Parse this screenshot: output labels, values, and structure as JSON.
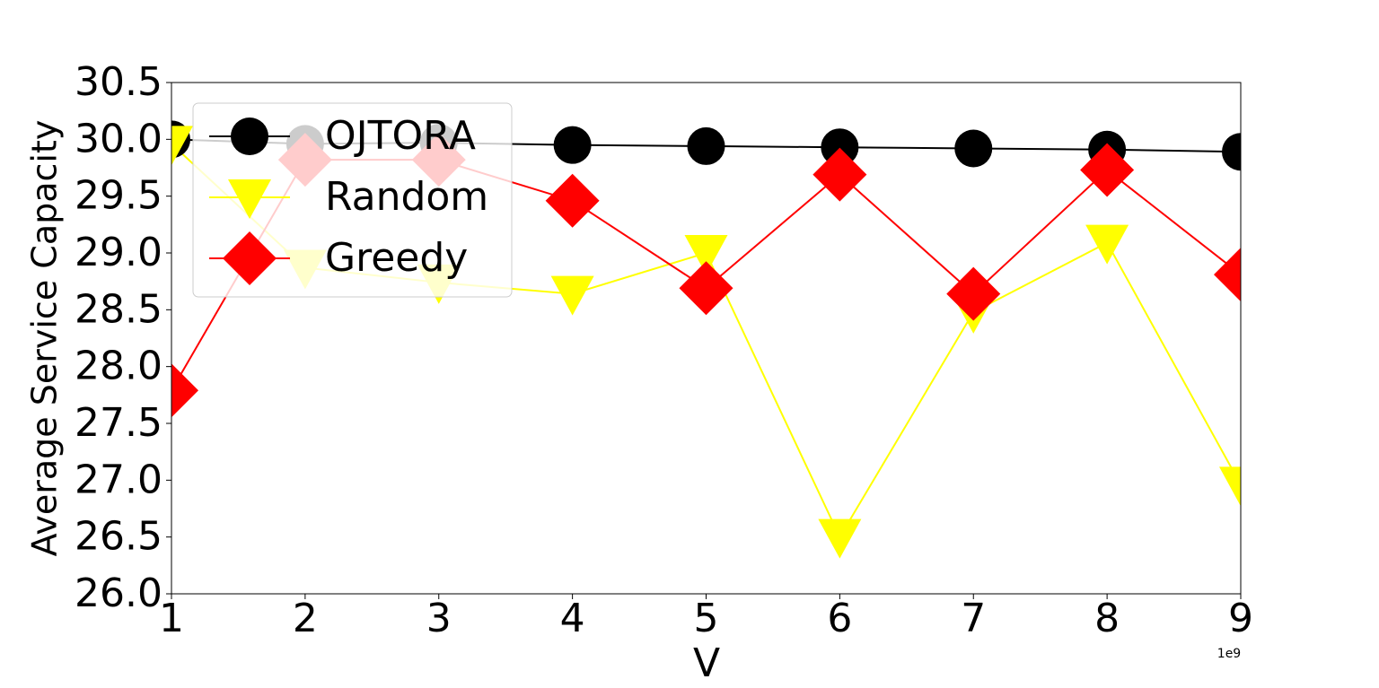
{
  "chart_data": {
    "type": "line",
    "x_label": "V",
    "y_label": "Average Service Capacity",
    "x_offset_label": "1e9",
    "x": [
      1,
      2,
      3,
      4,
      5,
      6,
      7,
      8,
      9
    ],
    "xlim": [
      1,
      9
    ],
    "xticks": [
      1,
      2,
      3,
      4,
      5,
      6,
      7,
      8,
      9
    ],
    "ylim": [
      26.0,
      30.5
    ],
    "yticks": [
      {
        "value": 26.0,
        "label": "26.0"
      },
      26.5,
      {
        "value": 27.0,
        "label": "27.0"
      },
      27.5,
      {
        "value": 28.0,
        "label": "28.0"
      },
      28.5,
      {
        "value": 29.0,
        "label": "29.0"
      },
      29.5,
      {
        "value": 30.0,
        "label": "30.0"
      },
      30.5
    ],
    "legend": "upper left",
    "series": [
      {
        "name": "OJTORA",
        "color": "#000000",
        "marker": "circle",
        "values": [
          30.0,
          29.96,
          29.97,
          29.95,
          29.94,
          29.93,
          29.92,
          29.91,
          29.89
        ]
      },
      {
        "name": "Random",
        "color": "#ffff00",
        "marker": "triangle-down",
        "values": [
          29.96,
          28.87,
          28.74,
          28.64,
          29.0,
          26.5,
          28.48,
          29.09,
          26.96
        ]
      },
      {
        "name": "Greedy",
        "color": "#ff0000",
        "marker": "diamond",
        "values": [
          27.79,
          29.82,
          29.82,
          29.46,
          28.69,
          29.69,
          28.64,
          29.73,
          28.81
        ]
      }
    ]
  }
}
